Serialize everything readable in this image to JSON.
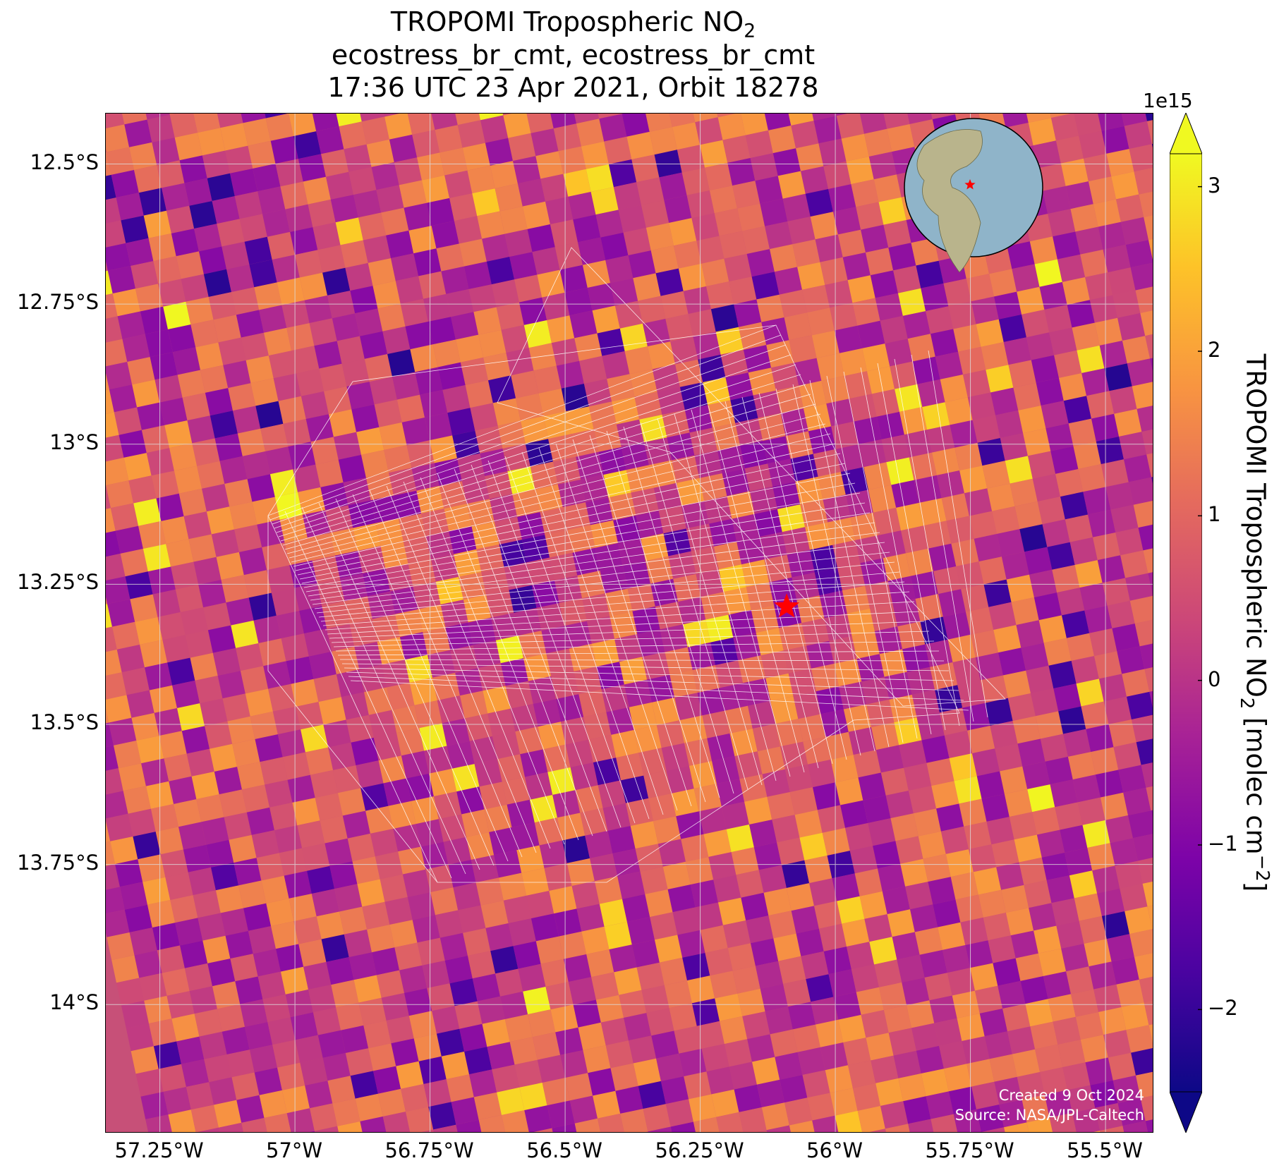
{
  "title": {
    "line1_main": "TROPOMI Tropospheric NO",
    "line1_sub": "2",
    "line2": "ecostress_br_cmt, ecostress_br_cmt",
    "line3": "17:36 UTC 23 Apr 2021, Orbit 18278"
  },
  "map": {
    "lon_range": [
      -57.35,
      -55.41
    ],
    "lat_range": [
      -14.23,
      -12.41
    ],
    "lat_ticks": [
      "12.5°S",
      "12.75°S",
      "13°S",
      "13.25°S",
      "13.5°S",
      "13.75°S",
      "14°S"
    ],
    "lat_tick_values": [
      -12.5,
      -12.75,
      -13.0,
      -13.25,
      -13.5,
      -13.75,
      -14.0
    ],
    "lon_ticks": [
      "57.25°W",
      "57°W",
      "56.75°W",
      "56.5°W",
      "56.25°W",
      "56°W",
      "55.75°W",
      "55.5°W"
    ],
    "lon_tick_values": [
      -57.25,
      -57.0,
      -56.75,
      -56.5,
      -56.25,
      -56.0,
      -55.75,
      -55.5
    ],
    "gridlines": true,
    "star_marker": {
      "lon": -56.09,
      "lat": -13.29,
      "color": "#ff0000"
    },
    "inset_globe_star_color": "#ff0000",
    "credit_line1": "Created 9 Oct 2024",
    "credit_line2": "Source: NASA/JPL-Caltech"
  },
  "colorbar": {
    "colormap": "plasma",
    "min": -2.5,
    "max": 3.2,
    "extend": "both",
    "exponent_label": "1e15",
    "tick_values": [
      -2,
      -1,
      0,
      1,
      2,
      3
    ],
    "tick_labels": [
      "−2",
      "−1",
      "0",
      "1",
      "2",
      "3"
    ],
    "label_main": "TROPOMI Tropospheric NO",
    "label_sub": "2",
    "label_units": " [molec cm",
    "label_sup": "−2",
    "label_end": "]"
  }
}
